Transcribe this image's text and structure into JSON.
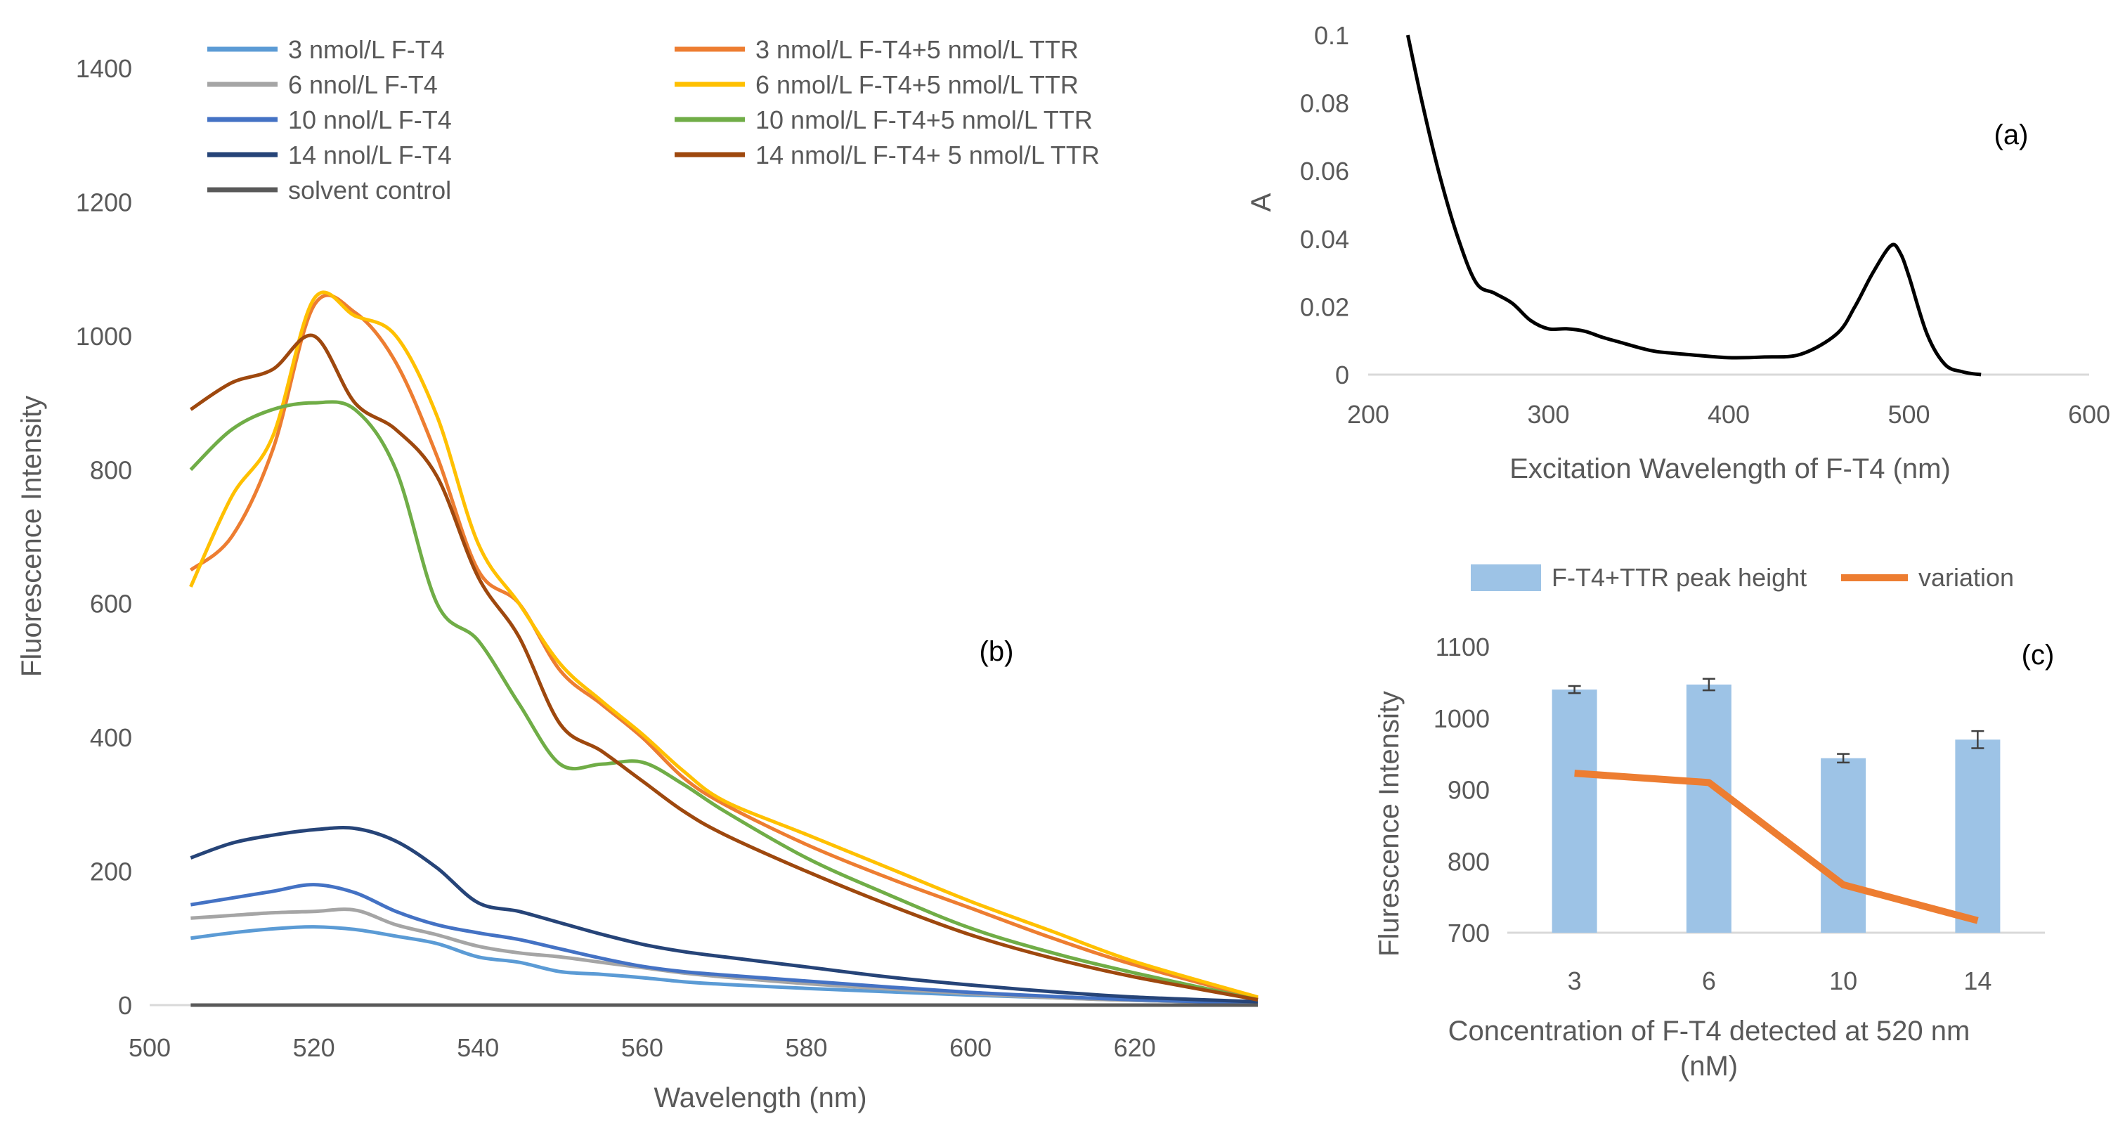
{
  "chart_data": [
    {
      "id": "b",
      "type": "line",
      "panel_label": "(b)",
      "xlabel": "Wavelength (nm)",
      "ylabel": "Fluorescence Intensity",
      "xlim": [
        500,
        635
      ],
      "ylim": [
        0,
        1400
      ],
      "xticks": [
        500,
        520,
        540,
        560,
        580,
        600,
        620
      ],
      "yticks": [
        0,
        200,
        400,
        600,
        800,
        1000,
        1200,
        1400
      ],
      "x": [
        505,
        510,
        515,
        520,
        525,
        530,
        535,
        540,
        545,
        550,
        555,
        560,
        565,
        570,
        580,
        590,
        600,
        610,
        620,
        635
      ],
      "series": [
        {
          "name": "3 nmol/L F-T4",
          "color": "#5b9bd5",
          "values": [
            100,
            108,
            114,
            117,
            113,
            103,
            92,
            72,
            64,
            50,
            46,
            41,
            35,
            31,
            25,
            20,
            15,
            11,
            7,
            3
          ]
        },
        {
          "name": "6 nnol/L F-T4",
          "color": "#a5a5a5",
          "values": [
            130,
            134,
            138,
            140,
            142,
            120,
            105,
            88,
            78,
            72,
            64,
            56,
            48,
            42,
            32,
            24,
            17,
            11,
            7,
            3
          ]
        },
        {
          "name": "10 nnol/L F-T4",
          "color": "#4472c4",
          "values": [
            150,
            160,
            170,
            180,
            168,
            140,
            120,
            108,
            98,
            84,
            70,
            58,
            50,
            45,
            36,
            27,
            19,
            13,
            8,
            3
          ]
        },
        {
          "name": "14 nnol/L F-T4",
          "color": "#264478",
          "values": [
            220,
            242,
            254,
            262,
            264,
            245,
            205,
            153,
            140,
            123,
            106,
            91,
            80,
            72,
            57,
            42,
            30,
            20,
            12,
            5
          ]
        },
        {
          "name": "solvent control",
          "color": "#595959",
          "values": [
            0,
            0,
            0,
            0,
            0,
            0,
            0,
            0,
            0,
            0,
            0,
            0,
            0,
            0,
            0,
            0,
            0,
            0,
            0,
            0
          ]
        },
        {
          "name": "3 nmol/L F-T4+5 nmol/L TTR",
          "color": "#ed7d31",
          "values": [
            650,
            700,
            830,
            1045,
            1035,
            960,
            820,
            650,
            600,
            500,
            450,
            400,
            340,
            300,
            240,
            190,
            145,
            100,
            60,
            10
          ]
        },
        {
          "name": "6 nmol/L F-T4+5 nmol/L TTR",
          "color": "#ffc000",
          "values": [
            625,
            760,
            850,
            1055,
            1030,
            1000,
            880,
            690,
            600,
            510,
            455,
            405,
            350,
            305,
            255,
            205,
            155,
            110,
            65,
            12
          ]
        },
        {
          "name": "10 nmol/L F-T4+5 nmol/L TTR",
          "color": "#70ad47",
          "values": [
            800,
            860,
            890,
            900,
            890,
            800,
            600,
            545,
            450,
            360,
            360,
            363,
            330,
            290,
            220,
            165,
            115,
            78,
            48,
            8
          ]
        },
        {
          "name": "14 nmol/L F-T4+ 5 nmol/L TTR",
          "color": "#9e480e",
          "values": [
            890,
            930,
            950,
            1000,
            900,
            860,
            790,
            640,
            550,
            420,
            380,
            335,
            290,
            255,
            200,
            150,
            105,
            70,
            42,
            8
          ]
        }
      ]
    },
    {
      "id": "a",
      "type": "line",
      "panel_label": "(a)",
      "xlabel": "Excitation Wavelength of F-T4 (nm)",
      "ylabel": "A",
      "xlim": [
        200,
        600
      ],
      "ylim": [
        0,
        0.1
      ],
      "xticks": [
        200,
        300,
        400,
        500,
        600
      ],
      "yticks": [
        0,
        0.02,
        0.04,
        0.06,
        0.08,
        0.1
      ],
      "series": [
        {
          "name": "absorbance",
          "color": "#000000",
          "x": [
            222,
            230,
            240,
            250,
            260,
            270,
            280,
            290,
            300,
            310,
            320,
            330,
            340,
            350,
            360,
            380,
            400,
            420,
            440,
            460,
            470,
            480,
            490,
            495,
            500,
            510,
            520,
            530,
            540
          ],
          "values": [
            0.1,
            0.08,
            0.058,
            0.04,
            0.027,
            0.024,
            0.021,
            0.016,
            0.0135,
            0.0135,
            0.0128,
            0.011,
            0.0095,
            0.008,
            0.0068,
            0.0058,
            0.005,
            0.0052,
            0.006,
            0.012,
            0.02,
            0.03,
            0.038,
            0.036,
            0.029,
            0.012,
            0.003,
            0.0008,
            0.0
          ]
        }
      ]
    },
    {
      "id": "c",
      "type": "bar",
      "panel_label": "(c)",
      "xlabel": "Concentration of F-T4 detected at 520 nm (nM)",
      "ylabel": "Flurescence Intensity",
      "ylim": [
        700,
        1100
      ],
      "yticks": [
        700,
        800,
        900,
        1000,
        1100
      ],
      "categories": [
        "3",
        "6",
        "10",
        "14"
      ],
      "legend": [
        "F-T4+TTR peak height",
        "variation"
      ],
      "series": [
        {
          "name": "F-T4+TTR peak height",
          "color": "#9dc3e6",
          "values": [
            1040,
            1047,
            944,
            970
          ],
          "errors": [
            5,
            8,
            6,
            12
          ]
        },
        {
          "name": "variation",
          "color": "#ed7d31",
          "values": [
            923,
            910,
            767,
            717
          ]
        }
      ]
    }
  ]
}
